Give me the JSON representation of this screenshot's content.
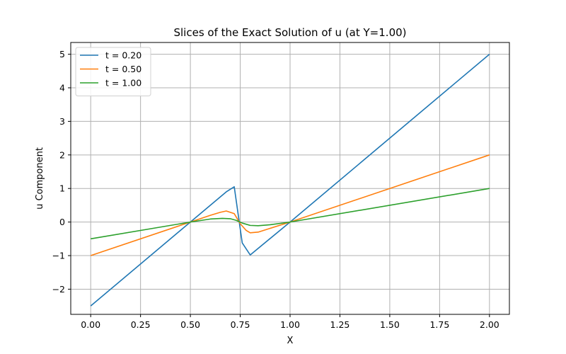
{
  "chart_data": {
    "type": "line",
    "title": "Slices of the Exact Solution of u (at Y=1.00)",
    "xlabel": "X",
    "ylabel": "u Component",
    "xlim": [
      -0.1,
      2.1
    ],
    "ylim": [
      -2.75,
      5.35
    ],
    "xticks": [
      0.0,
      0.25,
      0.5,
      0.75,
      1.0,
      1.25,
      1.5,
      1.75,
      2.0
    ],
    "xtick_labels": [
      "0.00",
      "0.25",
      "0.50",
      "0.75",
      "1.00",
      "1.25",
      "1.50",
      "1.75",
      "2.00"
    ],
    "yticks": [
      -2,
      -1,
      0,
      1,
      2,
      3,
      4,
      5
    ],
    "ytick_labels": [
      "−2",
      "−1",
      "0",
      "1",
      "2",
      "3",
      "4",
      "5"
    ],
    "grid": true,
    "legend_position": "top-left",
    "series": [
      {
        "name": "t = 0.20",
        "color": "#1f77b4",
        "x": [
          0.0,
          0.5,
          0.68,
          0.72,
          0.76,
          0.8,
          1.0,
          2.0
        ],
        "y": [
          -2.5,
          0.0,
          0.9,
          1.05,
          -0.62,
          -0.98,
          0.0,
          5.0
        ]
      },
      {
        "name": "t = 0.50",
        "color": "#ff7f0e",
        "x": [
          0.0,
          0.5,
          0.6,
          0.65,
          0.68,
          0.72,
          0.75,
          0.78,
          0.8,
          0.84,
          1.0,
          2.0
        ],
        "y": [
          -1.0,
          0.0,
          0.2,
          0.29,
          0.33,
          0.25,
          -0.05,
          -0.25,
          -0.32,
          -0.3,
          0.0,
          2.0
        ]
      },
      {
        "name": "t = 1.00",
        "color": "#2ca02c",
        "x": [
          0.0,
          0.5,
          0.6,
          0.66,
          0.7,
          0.73,
          0.76,
          0.8,
          0.84,
          0.9,
          1.0,
          2.0
        ],
        "y": [
          -0.5,
          0.0,
          0.09,
          0.11,
          0.1,
          0.05,
          -0.03,
          -0.1,
          -0.11,
          -0.08,
          0.0,
          1.0
        ]
      }
    ]
  }
}
